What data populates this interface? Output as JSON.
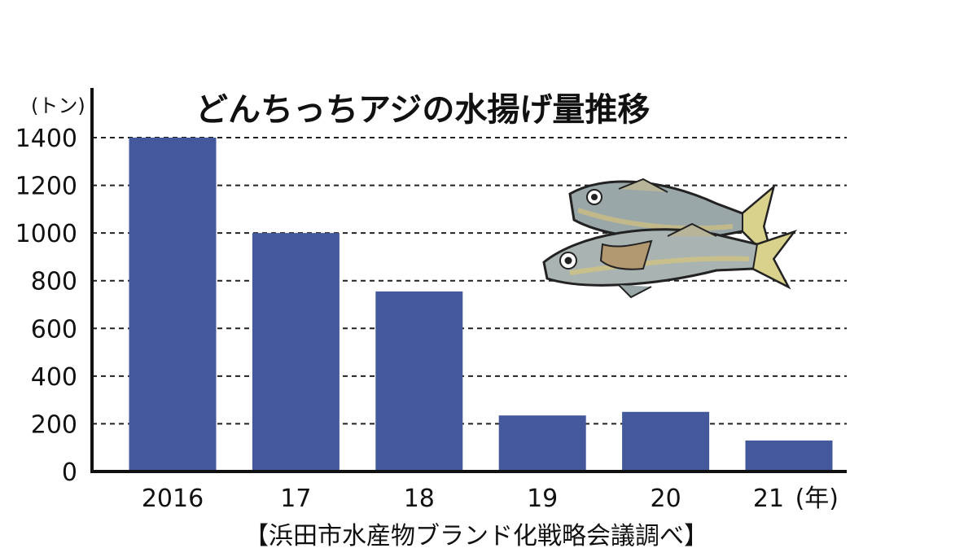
{
  "chart_data": {
    "type": "bar",
    "title": "どんちっちアジの水揚げ量推移",
    "y_unit": "(トン)",
    "x_unit": "(年)",
    "source": "【浜田市水産物ブランド化戦略会議調べ】",
    "categories": [
      "2016",
      "17",
      "18",
      "19",
      "20",
      "21"
    ],
    "values": [
      1400,
      1000,
      755,
      235,
      250,
      130
    ],
    "y_ticks": [
      0,
      200,
      400,
      600,
      800,
      1000,
      1200,
      1400
    ],
    "ylim": [
      0,
      1400
    ],
    "grid": "horizontal dashed",
    "legend": "none",
    "bar_color": "#44599b",
    "illustration": "horse-mackerel-fish-icon"
  }
}
